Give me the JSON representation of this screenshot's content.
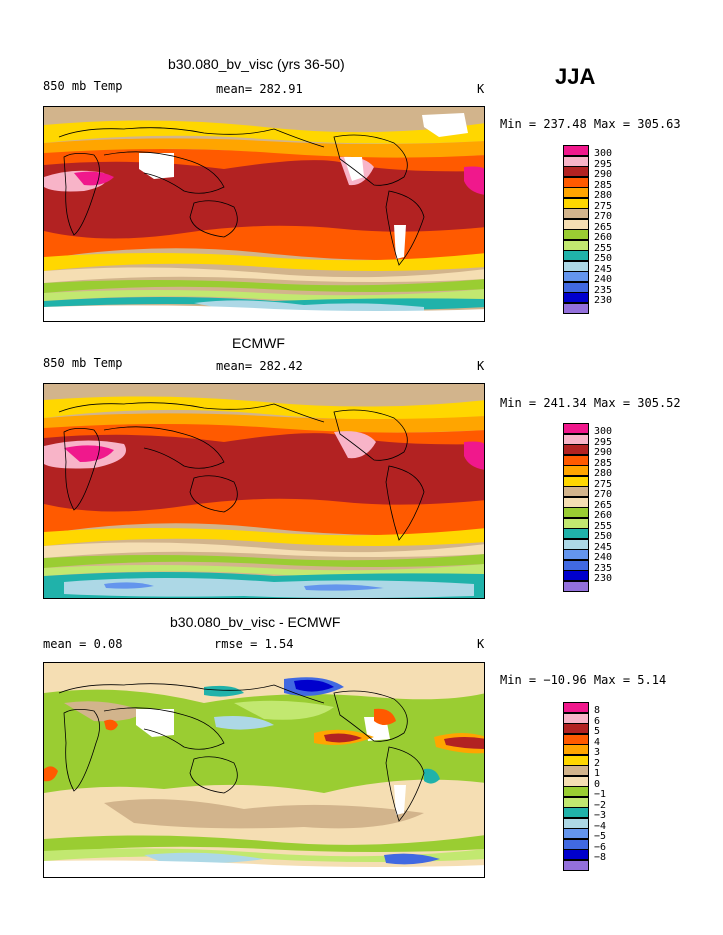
{
  "season": "JJA",
  "palette": {
    "p300": "#f0188c",
    "p295": "#f8b4c8",
    "p290": "#b22222",
    "p285": "#ff5a00",
    "p280": "#ffa500",
    "p275": "#ffd700",
    "p270": "#d2b48c",
    "p265": "#f5deb3",
    "p260": "#9acd32",
    "p255": "#c2e870",
    "p250": "#20b2aa",
    "p245": "#add8e6",
    "p240": "#6495ed",
    "p235": "#4169e1",
    "p230": "#0000cd",
    "p225": "#9370db"
  },
  "panels": [
    {
      "title": "b30.080_bv_visc (yrs 36-50)",
      "left_label": "850 mb Temp",
      "center_label": "mean= 282.91",
      "unit": "K",
      "minmax": "Min = 237.48 Max = 305.63",
      "legend": [
        "300",
        "295",
        "290",
        "285",
        "280",
        "275",
        "270",
        "265",
        "260",
        "255",
        "250",
        "245",
        "240",
        "235",
        "230"
      ]
    },
    {
      "title": "ECMWF",
      "left_label": "850 mb Temp",
      "center_label": "mean= 282.42",
      "unit": "K",
      "minmax": "Min = 241.34 Max = 305.52",
      "legend": [
        "300",
        "295",
        "290",
        "285",
        "280",
        "275",
        "270",
        "265",
        "260",
        "255",
        "250",
        "245",
        "240",
        "235",
        "230"
      ]
    },
    {
      "title": "b30.080_bv_visc - ECMWF",
      "left_label": "mean =    0.08",
      "center_label": "rmse =    1.54",
      "unit": "K",
      "minmax": "Min = −10.96 Max =    5.14",
      "legend": [
        "8",
        "6",
        "5",
        "4",
        "3",
        "2",
        "1",
        "0",
        "−1",
        "−2",
        "−3",
        "−4",
        "−5",
        "−6",
        "−8"
      ]
    }
  ]
}
